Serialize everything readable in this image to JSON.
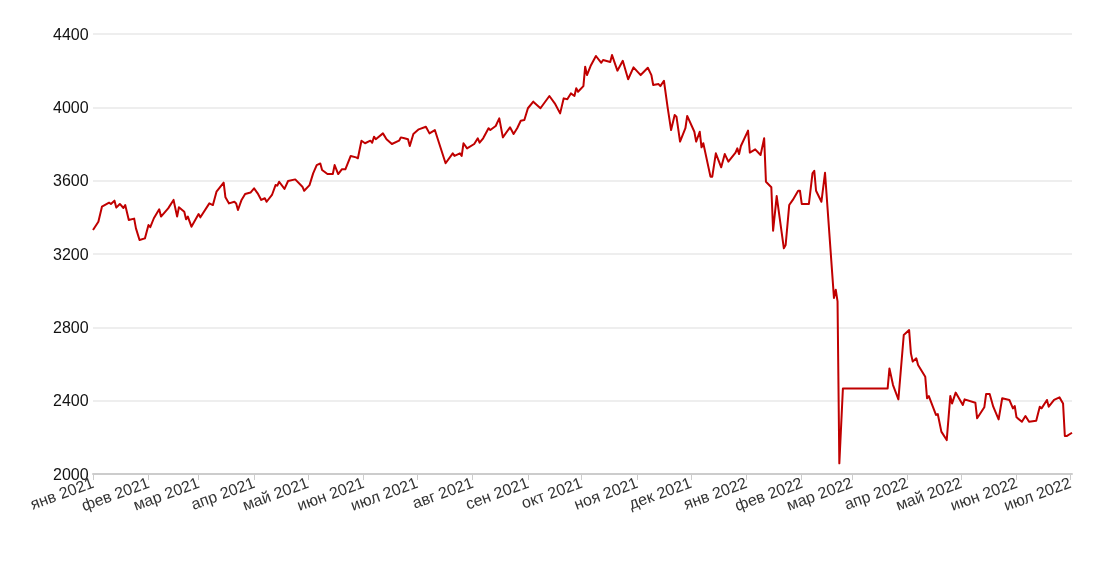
{
  "chart_data": {
    "type": "line",
    "line_style": "solid",
    "marker": "none",
    "grid": "y",
    "xlim": [
      "2021-01-01",
      "2022-07-02"
    ],
    "ylim": [
      2000,
      4400
    ],
    "yticks": [
      2000,
      2400,
      2800,
      3200,
      3600,
      4000,
      4400
    ],
    "xticks": [
      {
        "value": "2021-01-01",
        "label": "янв 2021"
      },
      {
        "value": "2021-02-01",
        "label": "фев 2021"
      },
      {
        "value": "2021-03-01",
        "label": "мар 2021"
      },
      {
        "value": "2021-04-01",
        "label": "апр 2021"
      },
      {
        "value": "2021-05-01",
        "label": "май 2021"
      },
      {
        "value": "2021-06-01",
        "label": "июн 2021"
      },
      {
        "value": "2021-07-01",
        "label": "июл 2021"
      },
      {
        "value": "2021-08-01",
        "label": "авг 2021"
      },
      {
        "value": "2021-09-01",
        "label": "сен 2021"
      },
      {
        "value": "2021-10-01",
        "label": "окт 2021"
      },
      {
        "value": "2021-11-01",
        "label": "ноя 2021"
      },
      {
        "value": "2021-12-01",
        "label": "дек 2021"
      },
      {
        "value": "2022-01-01",
        "label": "янв 2022"
      },
      {
        "value": "2022-02-01",
        "label": "фев 2022"
      },
      {
        "value": "2022-03-01",
        "label": "мар 2022"
      },
      {
        "value": "2022-04-01",
        "label": "апр 2022"
      },
      {
        "value": "2022-05-01",
        "label": "май 2022"
      },
      {
        "value": "2022-06-01",
        "label": "июн 2022"
      },
      {
        "value": "2022-07-01",
        "label": "июл 2022"
      }
    ],
    "x": [
      "2021-01-01",
      "2021-01-04",
      "2021-01-06",
      "2021-01-10",
      "2021-01-11",
      "2021-01-13",
      "2021-01-14",
      "2021-01-16",
      "2021-01-18",
      "2021-01-19",
      "2021-01-21",
      "2021-01-24",
      "2021-01-25",
      "2021-01-27",
      "2021-01-30",
      "2021-02-01",
      "2021-02-02",
      "2021-02-04",
      "2021-02-07",
      "2021-02-08",
      "2021-02-12",
      "2021-02-15",
      "2021-02-17",
      "2021-02-18",
      "2021-02-21",
      "2021-02-22",
      "2021-02-23",
      "2021-02-25",
      "2021-03-01",
      "2021-03-02",
      "2021-03-07",
      "2021-03-09",
      "2021-03-11",
      "2021-03-15",
      "2021-03-16",
      "2021-03-18",
      "2021-03-21",
      "2021-03-22",
      "2021-03-23",
      "2021-03-25",
      "2021-03-27",
      "2021-03-30",
      "2021-04-01",
      "2021-04-03",
      "2021-04-05",
      "2021-04-07",
      "2021-04-08",
      "2021-04-11",
      "2021-04-13",
      "2021-04-14",
      "2021-04-15",
      "2021-04-18",
      "2021-04-20",
      "2021-04-24",
      "2021-04-28",
      "2021-04-29",
      "2021-05-02",
      "2021-05-04",
      "2021-05-06",
      "2021-05-08",
      "2021-05-09",
      "2021-05-12",
      "2021-05-15",
      "2021-05-16",
      "2021-05-18",
      "2021-05-20",
      "2021-05-22",
      "2021-05-25",
      "2021-05-28",
      "2021-05-29",
      "2021-05-31",
      "2021-06-02",
      "2021-06-05",
      "2021-06-06",
      "2021-06-07",
      "2021-06-08",
      "2021-06-12",
      "2021-06-14",
      "2021-06-17",
      "2021-06-21",
      "2021-06-22",
      "2021-06-24",
      "2021-06-26",
      "2021-06-27",
      "2021-06-29",
      "2021-07-02",
      "2021-07-06",
      "2021-07-08",
      "2021-07-11",
      "2021-07-17",
      "2021-07-21",
      "2021-07-22",
      "2021-07-25",
      "2021-07-26",
      "2021-07-27",
      "2021-07-29",
      "2021-08-02",
      "2021-08-04",
      "2021-08-05",
      "2021-08-07",
      "2021-08-10",
      "2021-08-11",
      "2021-08-14",
      "2021-08-16",
      "2021-08-18",
      "2021-08-22",
      "2021-08-24",
      "2021-08-26",
      "2021-08-28",
      "2021-08-30",
      "2021-09-01",
      "2021-09-04",
      "2021-09-06",
      "2021-09-08",
      "2021-09-13",
      "2021-09-16",
      "2021-09-19",
      "2021-09-21",
      "2021-09-23",
      "2021-09-25",
      "2021-09-27",
      "2021-09-28",
      "2021-09-29",
      "2021-10-02",
      "2021-10-03",
      "2021-10-04",
      "2021-10-06",
      "2021-10-09",
      "2021-10-12",
      "2021-10-13",
      "2021-10-17",
      "2021-10-18",
      "2021-10-21",
      "2021-10-24",
      "2021-10-27",
      "2021-10-30",
      "2021-11-03",
      "2021-11-07",
      "2021-11-09",
      "2021-11-10",
      "2021-11-13",
      "2021-11-14",
      "2021-11-16",
      "2021-11-18",
      "2021-11-20",
      "2021-11-22",
      "2021-11-23",
      "2021-11-25",
      "2021-11-28",
      "2021-11-29",
      "2021-12-03",
      "2021-12-04",
      "2021-12-06",
      "2021-12-07",
      "2021-12-08",
      "2021-12-12",
      "2021-12-13",
      "2021-12-15",
      "2021-12-18",
      "2021-12-20",
      "2021-12-22",
      "2021-12-26",
      "2021-12-27",
      "2021-12-28",
      "2021-12-29",
      "2022-01-02",
      "2022-01-03",
      "2022-01-06",
      "2022-01-09",
      "2022-01-11",
      "2022-01-12",
      "2022-01-15",
      "2022-01-16",
      "2022-01-18",
      "2022-01-22",
      "2022-01-23",
      "2022-01-25",
      "2022-01-27",
      "2022-01-30",
      "2022-01-31",
      "2022-02-01",
      "2022-02-05",
      "2022-02-07",
      "2022-02-08",
      "2022-02-09",
      "2022-02-12",
      "2022-02-14",
      "2022-02-19",
      "2022-02-20",
      "2022-02-21",
      "2022-02-22",
      "2022-02-24",
      "2022-03-21",
      "2022-03-22",
      "2022-03-24",
      "2022-03-27",
      "2022-03-30",
      "2022-04-02",
      "2022-04-03",
      "2022-04-04",
      "2022-04-06",
      "2022-04-07",
      "2022-04-11",
      "2022-04-12",
      "2022-04-13",
      "2022-04-17",
      "2022-04-18",
      "2022-04-20",
      "2022-04-23",
      "2022-04-25",
      "2022-04-26",
      "2022-04-28",
      "2022-05-02",
      "2022-05-03",
      "2022-05-09",
      "2022-05-10",
      "2022-05-14",
      "2022-05-15",
      "2022-05-17",
      "2022-05-19",
      "2022-05-22",
      "2022-05-24",
      "2022-05-28",
      "2022-05-30",
      "2022-05-31",
      "2022-06-01",
      "2022-06-04",
      "2022-06-06",
      "2022-06-08",
      "2022-06-12",
      "2022-06-14",
      "2022-06-15",
      "2022-06-18",
      "2022-06-19",
      "2022-06-22",
      "2022-06-25",
      "2022-06-27",
      "2022-06-28",
      "2022-06-29",
      "2022-07-02"
    ],
    "series": [
      {
        "color": "#c00000",
        "values": [
          3331,
          3376,
          3458,
          3480,
          3473,
          3491,
          3453,
          3473,
          3451,
          3467,
          3385,
          3393,
          3340,
          3276,
          3285,
          3358,
          3346,
          3395,
          3444,
          3404,
          3449,
          3495,
          3404,
          3455,
          3431,
          3389,
          3404,
          3349,
          3418,
          3400,
          3476,
          3467,
          3540,
          3589,
          3509,
          3476,
          3485,
          3476,
          3440,
          3495,
          3527,
          3535,
          3558,
          3531,
          3495,
          3504,
          3485,
          3522,
          3576,
          3573,
          3594,
          3555,
          3598,
          3607,
          3567,
          3545,
          3576,
          3640,
          3685,
          3694,
          3658,
          3636,
          3636,
          3685,
          3636,
          3662,
          3662,
          3735,
          3727,
          3722,
          3818,
          3804,
          3818,
          3807,
          3840,
          3826,
          3858,
          3826,
          3800,
          3818,
          3836,
          3831,
          3826,
          3789,
          3855,
          3880,
          3894,
          3858,
          3876,
          3695,
          3749,
          3735,
          3749,
          3735,
          3804,
          3776,
          3800,
          3831,
          3807,
          3831,
          3886,
          3876,
          3898,
          3940,
          3836,
          3891,
          3855,
          3886,
          3927,
          3931,
          3995,
          4031,
          4013,
          3995,
          4062,
          4022,
          3967,
          4049,
          4044,
          4076,
          4062,
          4104,
          4085,
          4116,
          4222,
          4176,
          4225,
          4280,
          4243,
          4258,
          4247,
          4285,
          4200,
          4254,
          4153,
          4218,
          4176,
          4216,
          4176,
          4122,
          4127,
          4116,
          4145,
          4004,
          3876,
          3958,
          3949,
          3813,
          3886,
          3953,
          3867,
          3813,
          3867,
          3782,
          3804,
          3622,
          3622,
          3749,
          3673,
          3745,
          3704,
          3753,
          3776,
          3745,
          3789,
          3873,
          3753,
          3771,
          3740,
          3831,
          3594,
          3564,
          3327,
          3516,
          3231,
          3249,
          3467,
          3495,
          3545,
          3545,
          3473,
          3473,
          3640,
          3654,
          3545,
          3485,
          3643,
          2960,
          3005,
          2942,
          2058,
          2467,
          2467,
          2576,
          2485,
          2407,
          2758,
          2785,
          2658,
          2613,
          2631,
          2595,
          2531,
          2413,
          2425,
          2322,
          2327,
          2231,
          2185,
          2425,
          2385,
          2444,
          2376,
          2407,
          2389,
          2304,
          2364,
          2436,
          2436,
          2367,
          2298,
          2413,
          2404,
          2358,
          2371,
          2309,
          2285,
          2316,
          2285,
          2291,
          2367,
          2358,
          2404,
          2367,
          2404,
          2418,
          2385,
          2207,
          2207,
          2225
        ]
      }
    ]
  }
}
